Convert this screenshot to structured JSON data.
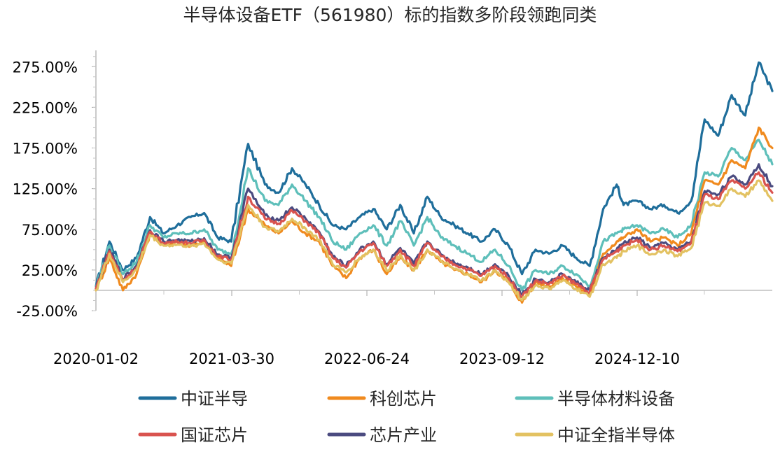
{
  "chart_data": {
    "type": "line",
    "title": "半导体设备ETF（561980）标的指数多阶段领跑同类",
    "xlabel": "",
    "ylabel": "",
    "x_tick_labels": [
      "2020-01-02",
      "2021-03-30",
      "2022-06-24",
      "2023-09-12",
      "2024-12-10"
    ],
    "y_tick_labels": [
      "275.00%",
      "225.00%",
      "175.00%",
      "125.00%",
      "75.00%",
      "25.00%",
      "-25.00%"
    ],
    "y_ticks": [
      275,
      225,
      175,
      125,
      75,
      25,
      -25
    ],
    "ylim": [
      -25,
      295
    ],
    "xlim": [
      0,
      1
    ],
    "grid": false,
    "legend_position": "bottom",
    "x": [
      0,
      0.02,
      0.04,
      0.06,
      0.08,
      0.1,
      0.12,
      0.14,
      0.16,
      0.18,
      0.2,
      0.225,
      0.25,
      0.27,
      0.29,
      0.31,
      0.33,
      0.35,
      0.37,
      0.39,
      0.41,
      0.43,
      0.45,
      0.47,
      0.49,
      0.51,
      0.53,
      0.55,
      0.57,
      0.59,
      0.61,
      0.63,
      0.65,
      0.67,
      0.69,
      0.71,
      0.73,
      0.75,
      0.77,
      0.78,
      0.8,
      0.82,
      0.84,
      0.86,
      0.88,
      0.9,
      0.92,
      0.94,
      0.96,
      0.98,
      1.0
    ],
    "series": [
      {
        "name": "中证半导",
        "color": "#1F6E9B",
        "values": [
          5,
          60,
          25,
          40,
          90,
          70,
          80,
          90,
          95,
          65,
          60,
          180,
          130,
          120,
          150,
          130,
          105,
          80,
          75,
          90,
          100,
          75,
          105,
          70,
          115,
          90,
          80,
          70,
          60,
          75,
          55,
          20,
          50,
          45,
          55,
          40,
          30,
          100,
          130,
          105,
          110,
          100,
          105,
          95,
          110,
          210,
          190,
          240,
          215,
          280,
          245
        ]
      },
      {
        "name": "科创芯片",
        "color": "#F08A1E",
        "values": [
          0,
          40,
          0,
          20,
          70,
          55,
          60,
          55,
          60,
          40,
          30,
          100,
          80,
          70,
          85,
          70,
          60,
          30,
          15,
          40,
          50,
          20,
          40,
          25,
          50,
          35,
          25,
          20,
          10,
          25,
          10,
          -15,
          10,
          5,
          15,
          5,
          -5,
          45,
          60,
          65,
          75,
          60,
          65,
          55,
          70,
          135,
          130,
          160,
          150,
          200,
          175
        ]
      },
      {
        "name": "半导体材料设备",
        "color": "#5EBFBA",
        "values": [
          5,
          55,
          20,
          35,
          80,
          65,
          70,
          70,
          75,
          50,
          45,
          150,
          110,
          105,
          130,
          110,
          90,
          60,
          50,
          70,
          80,
          55,
          85,
          55,
          90,
          65,
          55,
          45,
          35,
          50,
          30,
          0,
          25,
          20,
          30,
          20,
          5,
          60,
          70,
          75,
          80,
          70,
          75,
          65,
          80,
          145,
          140,
          175,
          160,
          185,
          155
        ]
      },
      {
        "name": "国证芯片",
        "color": "#D9534F",
        "values": [
          2,
          48,
          12,
          28,
          72,
          58,
          60,
          58,
          62,
          42,
          38,
          115,
          88,
          82,
          98,
          85,
          70,
          40,
          28,
          48,
          58,
          30,
          50,
          30,
          58,
          42,
          32,
          26,
          18,
          30,
          15,
          -8,
          12,
          8,
          18,
          8,
          -2,
          38,
          48,
          55,
          62,
          50,
          55,
          48,
          58,
          118,
          112,
          135,
          125,
          145,
          120
        ]
      },
      {
        "name": "芯片产业",
        "color": "#4B4B80",
        "values": [
          2,
          50,
          14,
          30,
          74,
          60,
          62,
          60,
          64,
          44,
          40,
          125,
          92,
          86,
          102,
          88,
          72,
          42,
          30,
          50,
          60,
          32,
          52,
          32,
          60,
          44,
          34,
          28,
          20,
          32,
          18,
          -5,
          14,
          10,
          20,
          10,
          0,
          40,
          50,
          58,
          65,
          52,
          58,
          50,
          60,
          122,
          118,
          140,
          130,
          155,
          128
        ]
      },
      {
        "name": "中证全指半导体",
        "color": "#E3C262",
        "values": [
          0,
          45,
          10,
          25,
          68,
          55,
          56,
          54,
          58,
          38,
          33,
          105,
          78,
          72,
          88,
          76,
          62,
          32,
          22,
          40,
          50,
          24,
          44,
          24,
          50,
          36,
          26,
          20,
          12,
          24,
          10,
          -12,
          6,
          2,
          12,
          2,
          -8,
          32,
          40,
          48,
          55,
          44,
          50,
          42,
          52,
          108,
          104,
          125,
          115,
          135,
          110
        ]
      }
    ]
  }
}
